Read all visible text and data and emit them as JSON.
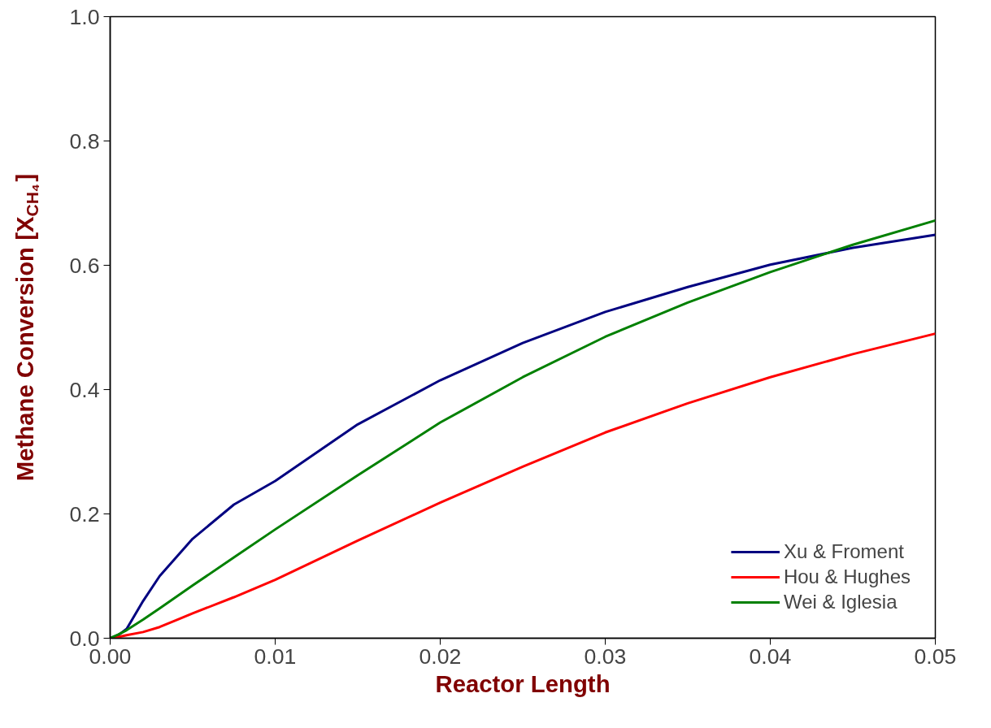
{
  "chart_data": {
    "type": "line",
    "xlabel": "Reactor Length",
    "ylabel": "Methane Conversion [X$_{CH₄}$]",
    "xlim": [
      0,
      0.05
    ],
    "ylim": [
      0,
      1.0
    ],
    "xticks": [
      {
        "value": 0,
        "label": "0.00"
      },
      {
        "value": 0.01,
        "label": "0.01"
      },
      {
        "value": 0.02,
        "label": "0.02"
      },
      {
        "value": 0.03,
        "label": "0.03"
      },
      {
        "value": 0.04,
        "label": "0.04"
      },
      {
        "value": 0.05,
        "label": "0.05"
      }
    ],
    "yticks": [
      {
        "value": 0,
        "label": "0.0"
      },
      {
        "value": 0.2,
        "label": "0.2"
      },
      {
        "value": 0.4,
        "label": "0.4"
      },
      {
        "value": 0.6,
        "label": "0.6"
      },
      {
        "value": 0.8,
        "label": "0.8"
      },
      {
        "value": 1.0,
        "label": "1.0"
      }
    ],
    "x": [
      0,
      0.0005,
      0.001,
      0.002,
      0.003,
      0.005,
      0.0075,
      0.01,
      0.015,
      0.02,
      0.025,
      0.03,
      0.035,
      0.04,
      0.045,
      0.05
    ],
    "series": [
      {
        "name": "Xu & Froment",
        "color": "#000080",
        "values": [
          0,
          0.005,
          0.015,
          0.06,
          0.1,
          0.16,
          0.215,
          0.253,
          0.344,
          0.415,
          0.475,
          0.525,
          0.565,
          0.601,
          0.628,
          0.649
        ]
      },
      {
        "name": "Hou & Hughes",
        "color": "#ff0000",
        "values": [
          0,
          0.002,
          0.005,
          0.01,
          0.018,
          0.04,
          0.066,
          0.094,
          0.157,
          0.218,
          0.276,
          0.331,
          0.378,
          0.42,
          0.457,
          0.49
        ]
      },
      {
        "name": "Wei & Iglesia",
        "color": "#008000",
        "values": [
          0,
          0.006,
          0.013,
          0.03,
          0.048,
          0.085,
          0.13,
          0.175,
          0.262,
          0.347,
          0.42,
          0.485,
          0.54,
          0.589,
          0.633,
          0.672
        ]
      }
    ],
    "grid": false,
    "legend": "bottom right",
    "line_style": "solid",
    "marker": "none"
  }
}
